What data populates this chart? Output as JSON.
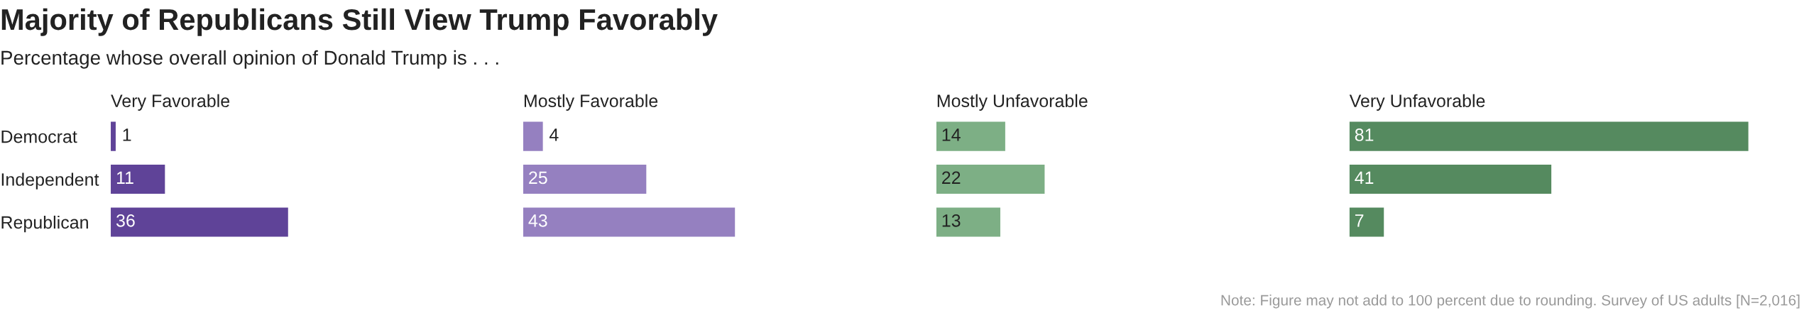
{
  "chart_data": [
    {
      "type": "other",
      "title": "Majority of Republicans Still View Trump Favorably",
      "subtitle": "Percentage whose overall opinion of Donald Trump is . . .",
      "annotations": [
        "Note: Figure may not add to 100 percent due to rounding. Survey of US adults [N=2,016]"
      ]
    },
    {
      "type": "bar",
      "orientation": "horizontal",
      "title": "Very Favorable",
      "categories": [
        "Democrat",
        "Independent",
        "Republican"
      ],
      "values": [
        1,
        11,
        36
      ],
      "color": "#5f4398",
      "data_labels": true,
      "tick_labels": "y"
    },
    {
      "type": "bar",
      "orientation": "horizontal",
      "title": "Mostly Favorable",
      "values": [
        4,
        25,
        43
      ],
      "color": "#9580c0",
      "data_labels": true,
      "tick_labels": false
    },
    {
      "type": "bar",
      "orientation": "horizontal",
      "title": "Mostly Unfavorable",
      "values": [
        14,
        22,
        13
      ],
      "color": "#7daf85",
      "data_labels": true,
      "tick_labels": false
    },
    {
      "type": "bar",
      "orientation": "horizontal",
      "title": "Very Unfavorable",
      "values": [
        81,
        41,
        7
      ],
      "color": "#558a5f",
      "data_labels": true,
      "tick_labels": false
    }
  ]
}
